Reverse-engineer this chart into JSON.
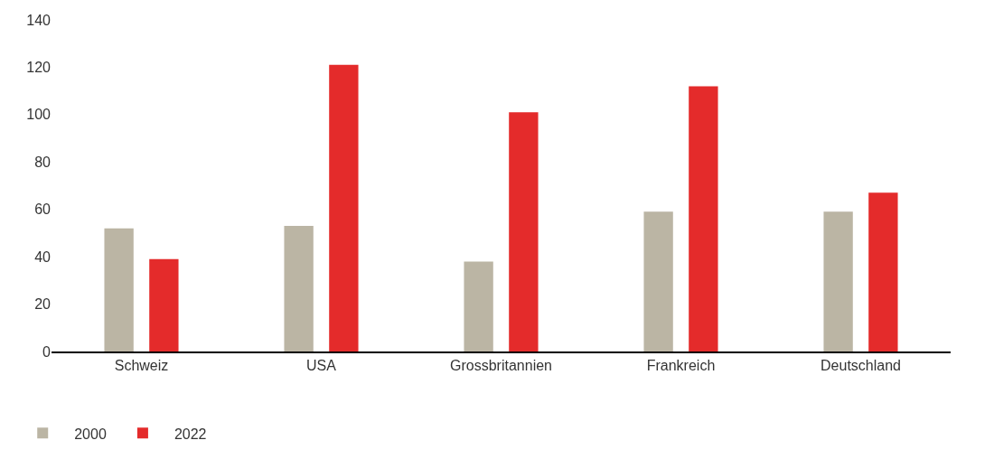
{
  "chart_data": {
    "type": "bar",
    "categories": [
      "Schweiz",
      "USA",
      "Grossbritannien",
      "Frankreich",
      "Deutschland"
    ],
    "series": [
      {
        "name": "2000",
        "color": "#bbb5a4",
        "values": [
          52,
          53,
          38,
          59,
          59
        ]
      },
      {
        "name": "2022",
        "color": "#e42b2b",
        "values": [
          39,
          121,
          101,
          112,
          67
        ]
      }
    ],
    "ylim": [
      0,
      140
    ],
    "yticks": [
      0,
      20,
      40,
      60,
      80,
      100,
      120,
      140
    ],
    "legend": "bottom left"
  }
}
